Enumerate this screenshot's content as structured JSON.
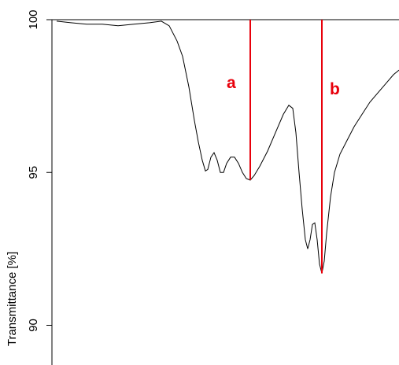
{
  "chart_data": {
    "type": "line",
    "ylabel": "Transmittance [%]",
    "x": [
      6,
      24,
      44,
      64,
      84,
      104,
      124,
      139,
      149,
      159,
      166,
      174,
      181,
      186,
      191,
      195,
      198,
      202,
      206,
      210,
      214,
      218,
      222,
      227,
      232,
      237,
      242,
      247,
      252,
      257,
      264,
      274,
      284,
      294,
      301,
      306,
      310,
      314,
      318,
      322,
      325,
      328,
      331,
      334,
      337,
      340,
      343,
      346,
      349,
      354,
      359,
      366,
      374,
      384,
      394,
      404,
      414,
      424,
      434,
      441
    ],
    "values": [
      99.95,
      99.9,
      99.85,
      99.85,
      99.8,
      99.85,
      99.9,
      99.95,
      99.8,
      99.3,
      98.8,
      97.8,
      96.7,
      96.0,
      95.4,
      95.05,
      95.1,
      95.5,
      95.65,
      95.4,
      95.0,
      95.0,
      95.3,
      95.5,
      95.5,
      95.3,
      95.0,
      94.8,
      94.75,
      94.9,
      95.2,
      95.7,
      96.3,
      96.9,
      97.2,
      97.1,
      96.3,
      95.0,
      93.8,
      92.8,
      92.5,
      92.8,
      93.3,
      93.35,
      92.8,
      92.0,
      91.7,
      92.1,
      93.0,
      94.2,
      95.0,
      95.6,
      96.0,
      96.5,
      96.9,
      97.3,
      97.6,
      97.9,
      98.2,
      98.35
    ],
    "color": "#000000",
    "xlim": [
      0,
      441
    ],
    "ylim": [
      88.7,
      100
    ],
    "yticks": [
      90,
      95,
      100
    ],
    "annotations": [
      {
        "label": "a",
        "x": 252,
        "y": 94.75,
        "color": "#e8000b"
      },
      {
        "label": "b",
        "x": 343,
        "y": 91.7,
        "color": "#e8000b"
      }
    ]
  }
}
